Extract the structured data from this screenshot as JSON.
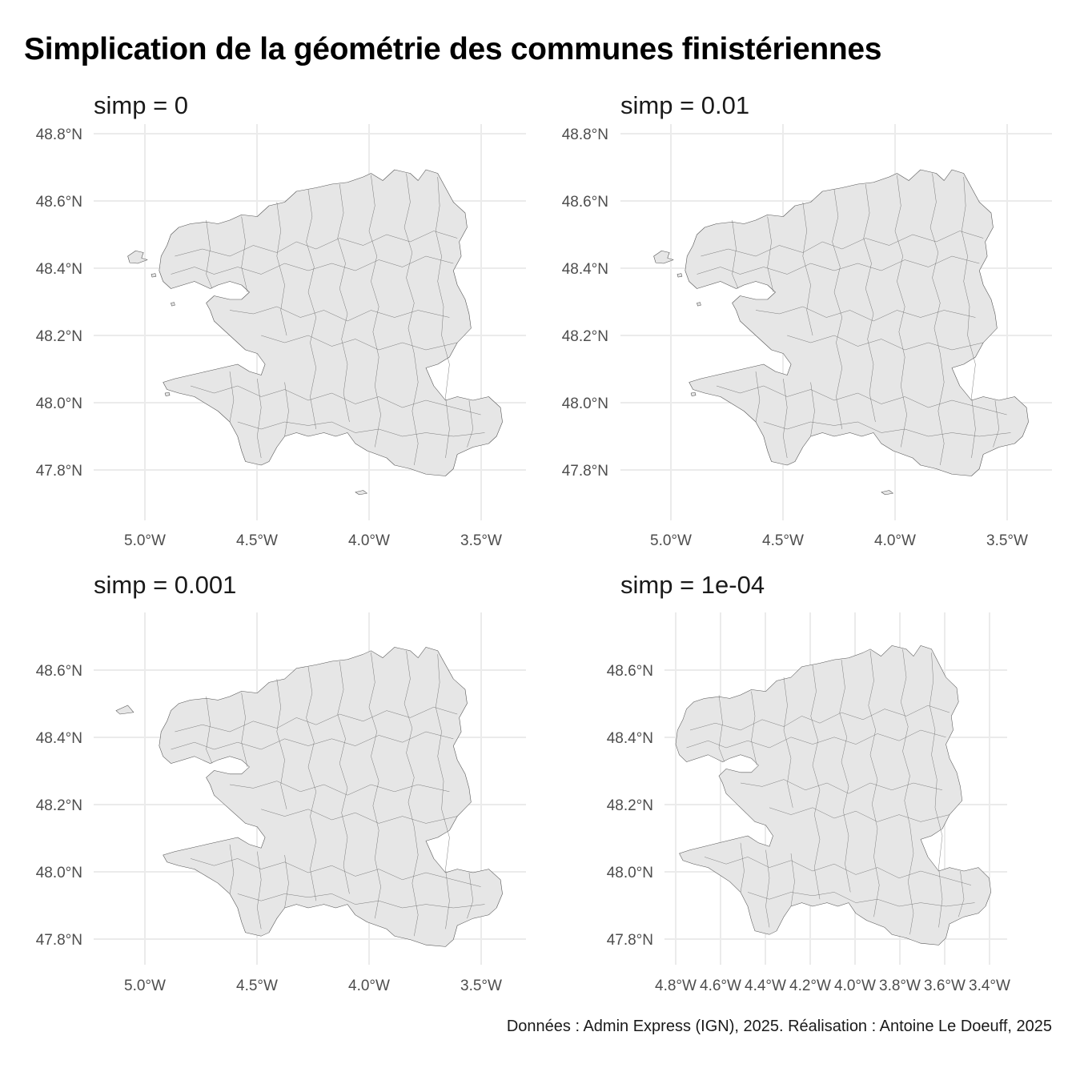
{
  "title": "Simplication de la géométrie des communes finistériennes",
  "caption": "Données : Admin Express (IGN), 2025. Réalisation : Antoine Le Doeuff, 2025",
  "panels": [
    {
      "label": "simp = 0",
      "x_ticks": [
        "5.0°W",
        "4.5°W",
        "4.0°W",
        "3.5°W"
      ],
      "y_ticks": [
        "48.8°N",
        "48.6°N",
        "48.4°N",
        "48.2°N",
        "48.0°N",
        "47.8°N"
      ]
    },
    {
      "label": "simp = 0.01",
      "x_ticks": [
        "5.0°W",
        "4.5°W",
        "4.0°W",
        "3.5°W"
      ],
      "y_ticks": [
        "48.8°N",
        "48.6°N",
        "48.4°N",
        "48.2°N",
        "48.0°N",
        "47.8°N"
      ]
    },
    {
      "label": "simp = 0.001",
      "x_ticks": [
        "5.0°W",
        "4.5°W",
        "4.0°W",
        "3.5°W"
      ],
      "y_ticks": [
        "48.6°N",
        "48.4°N",
        "48.2°N",
        "48.0°N",
        "47.8°N"
      ]
    },
    {
      "label": "simp = 1e-04",
      "x_ticks": [
        "4.8°W",
        "4.6°W",
        "4.4°W",
        "4.2°W",
        "4.0°W",
        "3.8°W",
        "3.6°W",
        "3.4°W"
      ],
      "y_ticks": [
        "48.6°N",
        "48.4°N",
        "48.2°N",
        "48.0°N",
        "47.8°N"
      ]
    }
  ]
}
